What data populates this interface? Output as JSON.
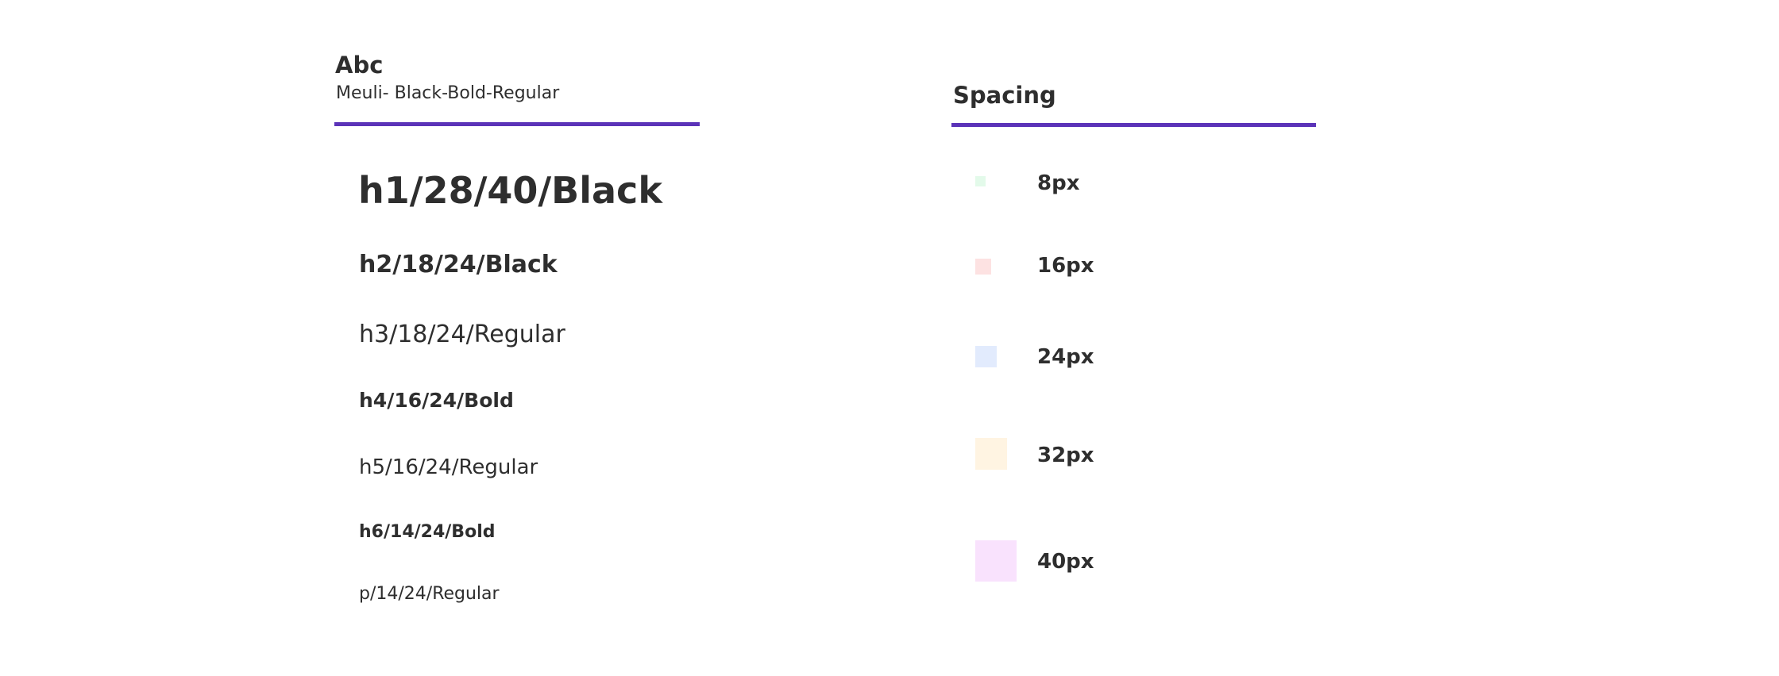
{
  "typography": {
    "title": "Abc",
    "subtitle": "Meuli- Black-Bold-Regular",
    "rule_color": "#5b33b8",
    "styles": [
      {
        "label": "h1/28/40/Black"
      },
      {
        "label": "h2/18/24/Black"
      },
      {
        "label": "h3/18/24/Regular"
      },
      {
        "label": "h4/16/24/Bold"
      },
      {
        "label": "h5/16/24/Regular"
      },
      {
        "label": "h6/14/24/Bold"
      },
      {
        "label": "p/14/24/Regular"
      }
    ]
  },
  "spacing": {
    "title": "Spacing",
    "rule_color": "#5b33b8",
    "items": [
      {
        "label": "8px",
        "color": "#e3faea"
      },
      {
        "label": "16px",
        "color": "#fde2e2"
      },
      {
        "label": "24px",
        "color": "#e2ebfd"
      },
      {
        "label": "32px",
        "color": "#fff4e2"
      },
      {
        "label": "40px",
        "color": "#f9e2fd"
      }
    ]
  }
}
